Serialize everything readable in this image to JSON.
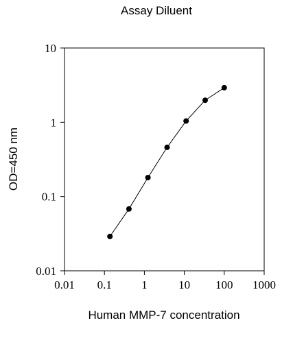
{
  "chart_data": {
    "type": "scatter",
    "title": "Assay Diluent",
    "xlabel": "Human MMP-7 concentration",
    "ylabel": "OD=450 nm",
    "x_scale": "log",
    "y_scale": "log",
    "xlim": [
      0.01,
      1000
    ],
    "ylim": [
      0.01,
      10
    ],
    "x_ticks": [
      0.01,
      0.1,
      1,
      10,
      100,
      1000
    ],
    "y_ticks": [
      0.01,
      0.1,
      1,
      10
    ],
    "x_tick_labels": [
      "0.01",
      "0.1",
      "1",
      "10",
      "100",
      "1000"
    ],
    "y_tick_labels": [
      "0.01",
      "0.1",
      "1",
      "10"
    ],
    "grid": false,
    "legend": "none",
    "series": [
      {
        "x": [
          0.137,
          0.41,
          1.23,
          3.7,
          11.1,
          33.3,
          100
        ],
        "y": [
          0.029,
          0.068,
          0.18,
          0.46,
          1.04,
          1.98,
          2.92
        ],
        "marker": "filled-circle",
        "line": "connected"
      }
    ]
  }
}
